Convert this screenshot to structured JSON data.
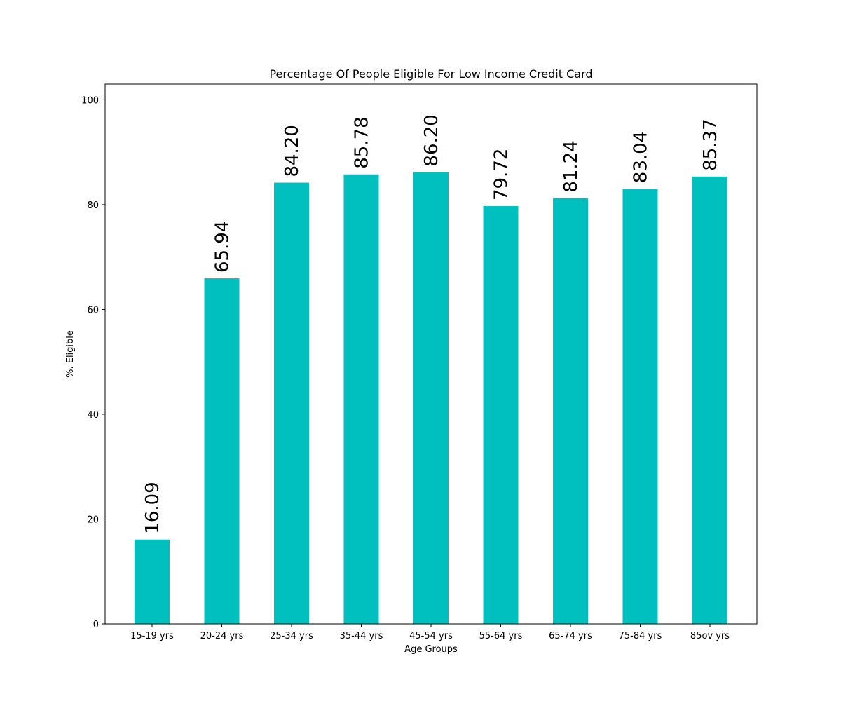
{
  "chart_data": {
    "type": "bar",
    "title": "Percentage Of People Eligible For Low Income Credit Card",
    "xlabel": "Age Groups",
    "ylabel": "%. Eligible",
    "categories": [
      "15-19 yrs",
      "20-24 yrs",
      "25-34 yrs",
      "35-44 yrs",
      "45-54 yrs",
      "55-64 yrs",
      "65-74 yrs",
      "75-84 yrs",
      "85ov yrs"
    ],
    "values": [
      16.09,
      65.94,
      84.2,
      85.78,
      86.2,
      79.72,
      81.24,
      83.04,
      85.37
    ],
    "value_labels": [
      "16.09",
      "65.94",
      "84.20",
      "85.78",
      "86.20",
      "79.72",
      "81.24",
      "83.04",
      "85.37"
    ],
    "ylim": [
      0,
      103
    ],
    "yticks": [
      0,
      20,
      40,
      60,
      80,
      100
    ],
    "bar_color": "#00bfbf",
    "grid": false,
    "legend": "none"
  }
}
